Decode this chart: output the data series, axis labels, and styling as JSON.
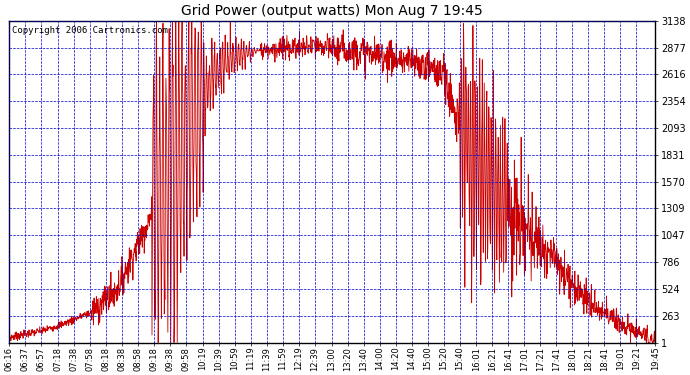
{
  "title": "Grid Power (output watts) Mon Aug 7 19:45",
  "copyright": "Copyright 2006 Cartronics.com",
  "background_color": "#FFFFFF",
  "plot_bg_color": "#FFFFFF",
  "grid_color": "#0000CC",
  "line_color": "#CC0000",
  "border_color": "#000000",
  "yticks": [
    1.4,
    262.9,
    524.3,
    785.7,
    1047.1,
    1308.6,
    1570.0,
    1831.4,
    2092.8,
    2354.3,
    2615.7,
    2877.1,
    3138.5
  ],
  "ymin": 1.4,
  "ymax": 3138.5,
  "x_labels": [
    "06:16",
    "06:37",
    "06:57",
    "07:18",
    "07:38",
    "07:58",
    "08:18",
    "08:38",
    "08:58",
    "09:18",
    "09:38",
    "09:58",
    "10:19",
    "10:39",
    "10:59",
    "11:19",
    "11:39",
    "11:59",
    "12:19",
    "12:39",
    "13:00",
    "13:20",
    "13:40",
    "14:00",
    "14:20",
    "14:40",
    "15:00",
    "15:20",
    "15:40",
    "16:01",
    "16:21",
    "16:41",
    "17:01",
    "17:21",
    "17:41",
    "18:01",
    "18:21",
    "18:41",
    "19:01",
    "19:21",
    "19:45"
  ],
  "title_fontsize": 10,
  "copyright_fontsize": 6.5,
  "tick_fontsize": 7,
  "x_tick_fontsize": 6
}
